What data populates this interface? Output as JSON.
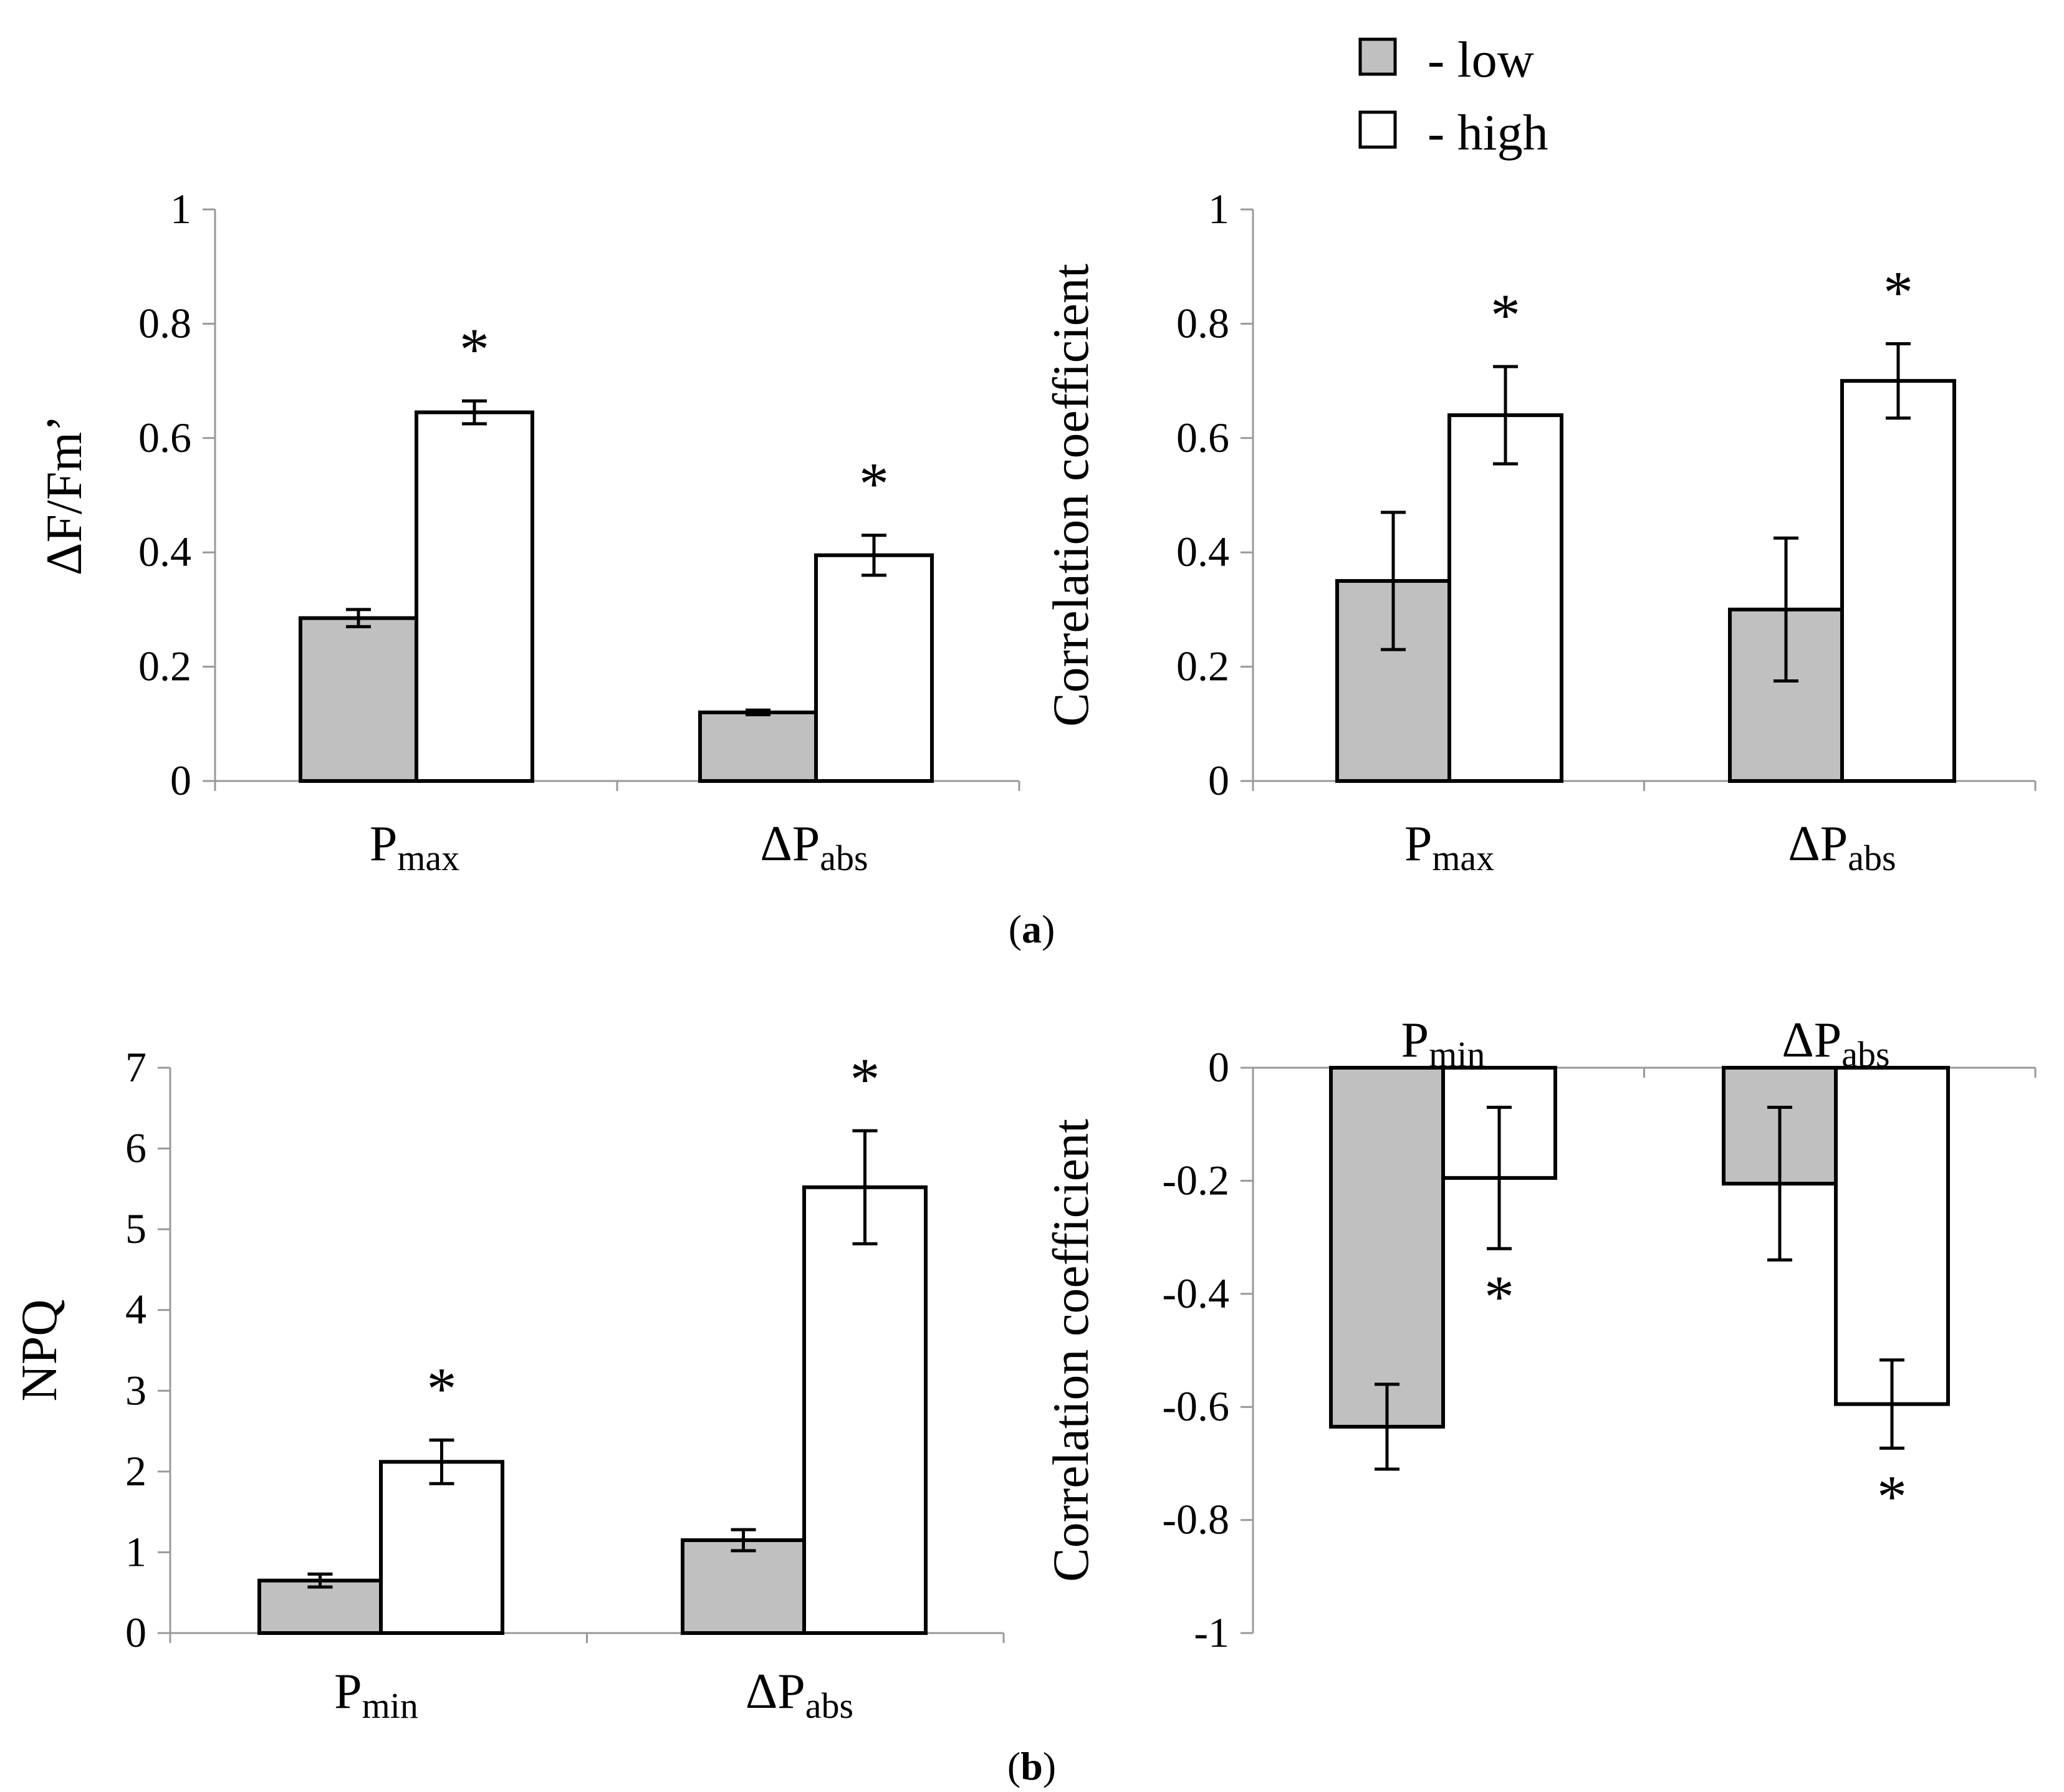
{
  "legend": {
    "items": [
      {
        "label": "- low",
        "color": "#c0c0c0"
      },
      {
        "label": "- high",
        "color": "#ffffff"
      }
    ]
  },
  "panel_labels": {
    "a": {
      "open": "(",
      "letter": "a",
      "close": ")"
    },
    "b": {
      "open": "(",
      "letter": "b",
      "close": ")"
    }
  },
  "colors": {
    "low": "#c0c0c0",
    "high": "#ffffff",
    "stroke": "#000000"
  },
  "chart_data": [
    {
      "id": "a-left",
      "type": "bar",
      "ylabel": "ΔF/Fm’",
      "ylim": [
        0,
        1
      ],
      "yticks": [
        0,
        0.2,
        0.4,
        0.6,
        0.8,
        1
      ],
      "ytick_labels": [
        "0",
        "0.2",
        "0.4",
        "0.6",
        "0.8",
        "1"
      ],
      "categories": [
        {
          "main": "P",
          "sub": "max"
        },
        {
          "main": "ΔP",
          "sub": "abs"
        }
      ],
      "series": [
        {
          "name": "low",
          "values": [
            0.285,
            0.12
          ],
          "errors": [
            0.015,
            0.004
          ],
          "significant": [
            false,
            false
          ]
        },
        {
          "name": "high",
          "values": [
            0.645,
            0.395
          ],
          "errors": [
            0.02,
            0.035
          ],
          "significant": [
            true,
            true
          ]
        }
      ],
      "star_symbol": "*"
    },
    {
      "id": "a-right",
      "type": "bar",
      "ylabel": "Correlation coefficient",
      "ylim": [
        0,
        1
      ],
      "yticks": [
        0,
        0.2,
        0.4,
        0.6,
        0.8,
        1
      ],
      "ytick_labels": [
        "0",
        "0.2",
        "0.4",
        "0.6",
        "0.8",
        "1"
      ],
      "categories": [
        {
          "main": "P",
          "sub": "max"
        },
        {
          "main": "ΔP",
          "sub": "abs"
        }
      ],
      "series": [
        {
          "name": "low",
          "values": [
            0.35,
            0.3
          ],
          "errors": [
            0.12,
            0.125
          ],
          "significant": [
            false,
            false
          ]
        },
        {
          "name": "high",
          "values": [
            0.64,
            0.7
          ],
          "errors": [
            0.085,
            0.065
          ],
          "significant": [
            true,
            true
          ]
        }
      ],
      "star_symbol": "*"
    },
    {
      "id": "b-left",
      "type": "bar",
      "ylabel": "NPQ",
      "ylim": [
        0,
        7
      ],
      "yticks": [
        0,
        1,
        2,
        3,
        4,
        5,
        6,
        7
      ],
      "ytick_labels": [
        "0",
        "1",
        "2",
        "3",
        "4",
        "5",
        "6",
        "7"
      ],
      "categories": [
        {
          "main": "P",
          "sub": "min"
        },
        {
          "main": "ΔP",
          "sub": "abs"
        }
      ],
      "series": [
        {
          "name": "low",
          "values": [
            0.65,
            1.15
          ],
          "errors": [
            0.08,
            0.13
          ],
          "significant": [
            false,
            false
          ]
        },
        {
          "name": "high",
          "values": [
            2.12,
            5.52
          ],
          "errors": [
            0.27,
            0.7
          ],
          "significant": [
            true,
            true
          ]
        }
      ],
      "star_symbol": "*"
    },
    {
      "id": "b-right",
      "type": "bar",
      "ylabel": "Correlation coefficient",
      "ylim": [
        -1,
        0
      ],
      "yticks": [
        0,
        -0.2,
        -0.4,
        -0.6,
        -0.8,
        -1
      ],
      "ytick_labels": [
        "0",
        "-0.2",
        "-0.4",
        "-0.6",
        "-0.8",
        "-1"
      ],
      "categories": [
        {
          "main": "P",
          "sub": "min"
        },
        {
          "main": "ΔP",
          "sub": "abs"
        }
      ],
      "series": [
        {
          "name": "low",
          "values": [
            -0.635,
            -0.205
          ],
          "errors": [
            0.075,
            0.135
          ],
          "significant": [
            false,
            false
          ]
        },
        {
          "name": "high",
          "values": [
            -0.195,
            -0.595
          ],
          "errors": [
            0.125,
            0.078
          ],
          "significant": [
            true,
            true
          ]
        }
      ],
      "star_symbol": "*"
    }
  ]
}
